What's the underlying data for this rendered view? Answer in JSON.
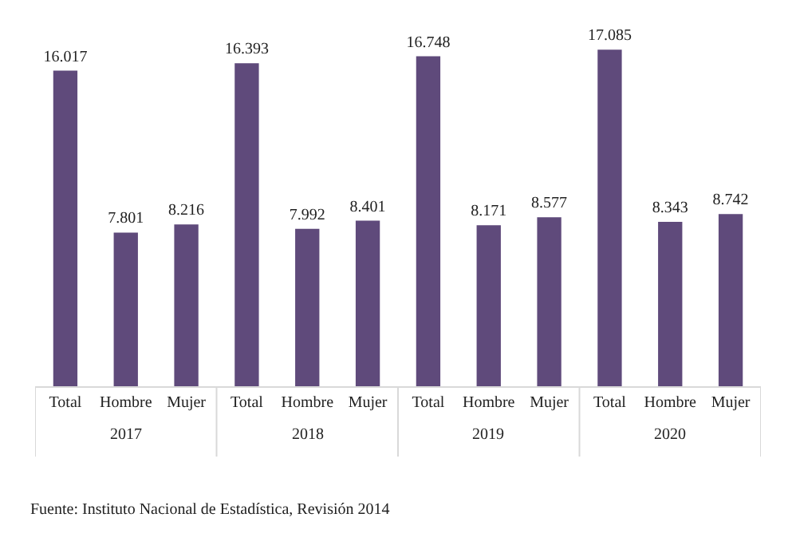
{
  "chart_data": {
    "type": "bar",
    "categories": [
      "Total",
      "Hombre",
      "Mujer",
      "Total",
      "Hombre",
      "Mujer",
      "Total",
      "Hombre",
      "Mujer",
      "Total",
      "Hombre",
      "Mujer"
    ],
    "values": [
      16.017,
      7.801,
      8.216,
      16.393,
      7.992,
      8.401,
      16.748,
      8.171,
      8.577,
      17.085,
      8.343,
      8.742
    ],
    "color": "#5f4a7b",
    "data_labels": true,
    "annotations": [
      "2017",
      "2018",
      "2019",
      "2020",
      "Fuente: Instituto Nacional de Estadística, Revisión 2014"
    ]
  }
}
